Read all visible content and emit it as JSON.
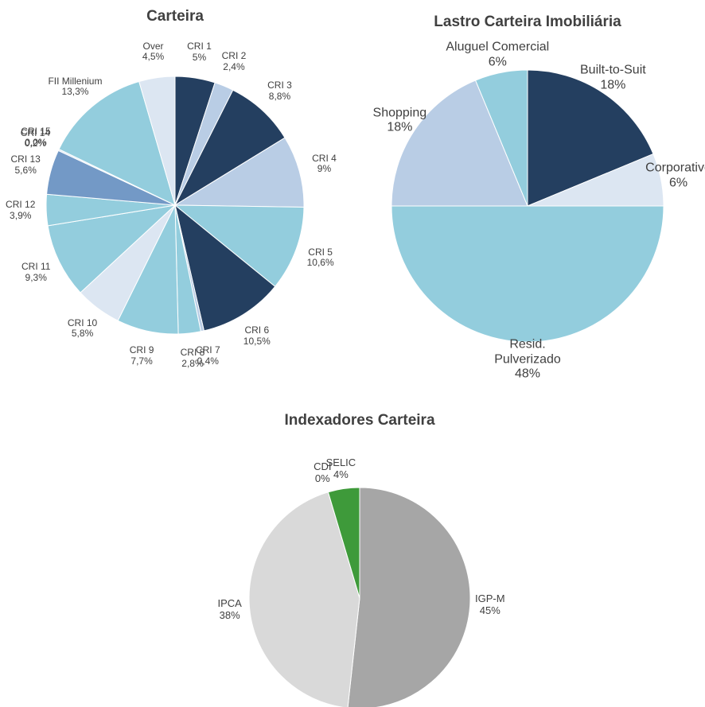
{
  "chart_data": [
    {
      "type": "pie",
      "title": "Carteira",
      "categories": [
        "CRI 1",
        "CRI 2",
        "CRI 3",
        "CRI 4",
        "CRI 5",
        "CRI 6",
        "CRI 7",
        "CRI 8",
        "CRI 9",
        "CRI 10",
        "CRI 11",
        "CRI 12",
        "CRI 13",
        "CRI 14",
        "CRI 15",
        "FII Millenium",
        "Over"
      ],
      "values": [
        5,
        2.4,
        8.8,
        9,
        10.6,
        10.5,
        0.4,
        2.8,
        7.7,
        5.8,
        9.3,
        3.9,
        5.6,
        0.2,
        0,
        13.3,
        4.5
      ],
      "value_labels": [
        "5%",
        "2,4%",
        "8,8%",
        "9%",
        "10,6%",
        "10,5%",
        "0,4%",
        "2,8%",
        "7,7%",
        "5,8%",
        "9,3%",
        "3,9%",
        "5,6%",
        "0,2%",
        "0,0%",
        "13,3%",
        "4,5%"
      ],
      "colors": [
        "#243f60",
        "#b9cde5",
        "#243f60",
        "#b9cde5",
        "#93cddd",
        "#243f60",
        "#b9cde5",
        "#93cddd",
        "#93cddd",
        "#dce6f2",
        "#93cddd",
        "#93cddd",
        "#7399c6",
        "#dce6f2",
        "#dce6f2",
        "#93cddd",
        "#dce6f2"
      ]
    },
    {
      "type": "pie",
      "title": "Lastro Carteira Imobiliária",
      "categories": [
        "Built-to-Suit",
        "Corporativo",
        "Resid.\nPulverizado",
        "Shopping",
        "Aluguel Comercial"
      ],
      "values": [
        18,
        6,
        48,
        18,
        6
      ],
      "value_labels": [
        "18%",
        "6%",
        "48%",
        "18%",
        "6%"
      ],
      "colors": [
        "#243f60",
        "#dce6f2",
        "#93cddd",
        "#b9cde5",
        "#93cddd"
      ]
    },
    {
      "type": "pie",
      "title": "Indexadores Carteira",
      "categories": [
        "IGP-M",
        "IPCA",
        "CDI",
        "SELIC"
      ],
      "values": [
        45,
        38,
        0,
        4
      ],
      "value_labels": [
        "45%",
        "38%",
        "0%",
        "4%"
      ],
      "colors": [
        "#a6a6a6",
        "#d9d9d9",
        "#7f7f7f",
        "#3e9a3a"
      ]
    }
  ]
}
